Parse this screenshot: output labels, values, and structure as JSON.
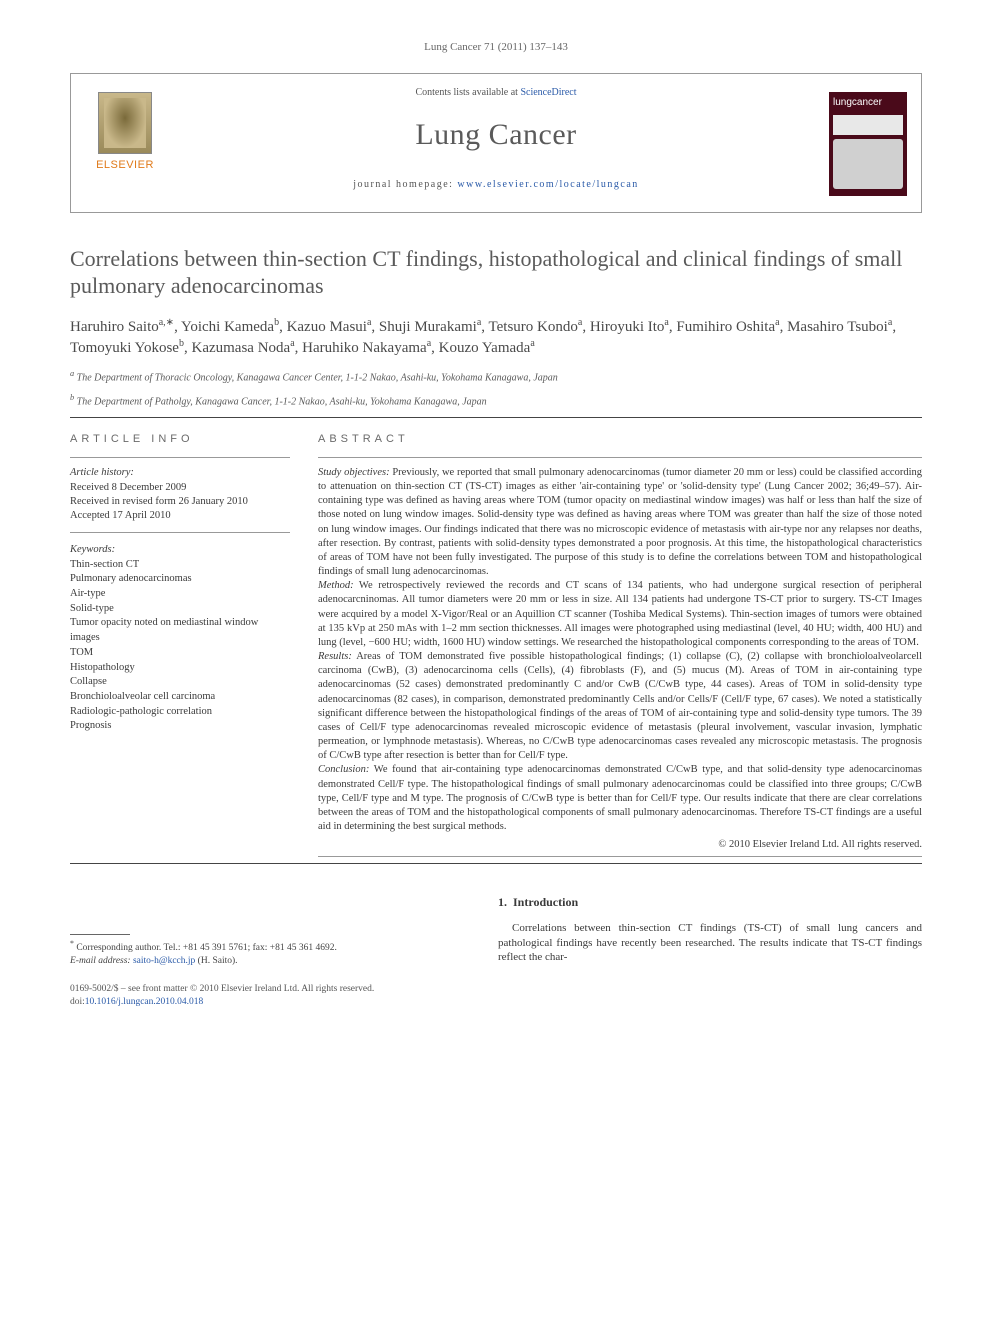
{
  "running_head": "Lung Cancer 71 (2011) 137–143",
  "masthead": {
    "contents_prefix": "Contents lists available at ",
    "contents_link": "ScienceDirect",
    "journal": "Lung Cancer",
    "homepage_prefix": "journal homepage: ",
    "homepage_url": "www.elsevier.com/locate/lungcan",
    "publisher": "ELSEVIER",
    "cover_label": "lungcancer"
  },
  "article": {
    "title": "Correlations between thin-section CT findings, histopathological and clinical findings of small pulmonary adenocarcinomas"
  },
  "authors": [
    {
      "name": "Haruhiro Saito",
      "aff": "a",
      "corr": true
    },
    {
      "name": "Yoichi Kameda",
      "aff": "b"
    },
    {
      "name": "Kazuo Masui",
      "aff": "a"
    },
    {
      "name": "Shuji Murakami",
      "aff": "a"
    },
    {
      "name": "Tetsuro Kondo",
      "aff": "a"
    },
    {
      "name": "Hiroyuki Ito",
      "aff": "a"
    },
    {
      "name": "Fumihiro Oshita",
      "aff": "a"
    },
    {
      "name": "Masahiro Tsuboi",
      "aff": "a"
    },
    {
      "name": "Tomoyuki Yokose",
      "aff": "b"
    },
    {
      "name": "Kazumasa Noda",
      "aff": "a"
    },
    {
      "name": "Haruhiko Nakayama",
      "aff": "a"
    },
    {
      "name": "Kouzo Yamada",
      "aff": "a"
    }
  ],
  "affiliations": {
    "a": "The Department of Thoracic Oncology, Kanagawa Cancer Center, 1-1-2 Nakao, Asahi-ku, Yokohama Kanagawa, Japan",
    "b": "The Department of Patholgy, Kanagawa Cancer, 1-1-2 Nakao, Asahi-ku, Yokohama Kanagawa, Japan"
  },
  "article_info": {
    "head": "ARTICLE INFO",
    "history_head": "Article history:",
    "history": [
      "Received 8 December 2009",
      "Received in revised form 26 January 2010",
      "Accepted 17 April 2010"
    ],
    "keywords_head": "Keywords:",
    "keywords": [
      "Thin-section CT",
      "Pulmonary adenocarcinomas",
      "Air-type",
      "Solid-type",
      "Tumor opacity noted on mediastinal window images",
      "TOM",
      "Histopathology",
      "Collapse",
      "Bronchioloalveolar cell carcinoma",
      "Radiologic-pathologic correlation",
      "Prognosis"
    ]
  },
  "abstract": {
    "head": "ABSTRACT",
    "parts": [
      {
        "label": "Study objectives:",
        "text": "Previously, we reported that small pulmonary adenocarcinomas (tumor diameter 20 mm or less) could be classified according to attenuation on thin-section CT (TS-CT) images as either 'air-containing type' or 'solid-density type' (Lung Cancer 2002; 36;49–57). Air-containing type was defined as having areas where TOM (tumor opacity on mediastinal window images) was half or less than half the size of those noted on lung window images. Solid-density type was defined as having areas where TOM was greater than half the size of those noted on lung window images. Our findings indicated that there was no microscopic evidence of metastasis with air-type nor any relapses nor deaths, after resection. By contrast, patients with solid-density types demonstrated a poor prognosis. At this time, the histopathological characteristics of areas of TOM have not been fully investigated. The purpose of this study is to define the correlations between TOM and histopathological findings of small lung adenocarcinomas."
      },
      {
        "label": "Method:",
        "text": "We retrospectively reviewed the records and CT scans of 134 patients, who had undergone surgical resection of peripheral adenocarcninomas. All tumor diameters were 20 mm or less in size. All 134 patients had undergone TS-CT prior to surgery. TS-CT Images were acquired by a model X-Vigor/Real or an Aquillion CT scanner (Toshiba Medical Systems). Thin-section images of tumors were obtained at 135 kVp at 250 mAs with 1–2 mm section thicknesses. All images were photographed using mediastinal (level, 40 HU; width, 400 HU) and lung (level, −600 HU; width, 1600 HU) window settings. We researched the histopathological components corresponding to the areas of TOM."
      },
      {
        "label": "Results:",
        "text": "Areas of TOM demonstrated five possible histopathological findings; (1) collapse (C), (2) collapse with bronchioloalveolarcell carcinoma (CwB), (3) adenocarcinoma cells (Cells), (4) fibroblasts (F), and (5) mucus (M). Areas of TOM in air-containing type adenocarcinomas (52 cases) demonstrated predominantly C and/or CwB (C/CwB type, 44 cases). Areas of TOM in solid-density type adenocarcinomas (82 cases), in comparison, demonstrated predominantly Cells and/or Cells/F (Cell/F type, 67 cases). We noted a statistically significant difference between the histopathological findings of the areas of TOM of air-containing type and solid-density type tumors. The 39 cases of Cell/F type adenocarcinomas revealed microscopic evidence of metastasis (pleural involvement, vascular invasion, lymphatic permeation, or lymphnode metastasis). Whereas, no C/CwB type adenocarcinomas cases revealed any microscopic metastasis. The prognosis of C/CwB type after resection is better than for Cell/F type."
      },
      {
        "label": "Conclusion:",
        "text": "We found that air-containing type adenocarcinomas demonstrated C/CwB type, and that solid-density type adenocarcinomas demonstrated Cell/F type. The histopathological findings of small pulmonary adenocarcinomas could be classified into three groups; C/CwB type, Cell/F type and M type. The prognosis of C/CwB type is better than for Cell/F type. Our results indicate that there are clear correlations between the areas of TOM and the histopathological components of small pulmonary adenocarcinomas. Therefore TS-CT findings are a useful aid in determining the best surgical methods."
      }
    ],
    "copyright": "© 2010 Elsevier Ireland Ltd. All rights reserved."
  },
  "body": {
    "section_number": "1.",
    "section_title": "Introduction",
    "para1": "Correlations between thin-section CT findings (TS-CT) of small lung cancers and pathological findings have recently been researched. The results indicate that TS-CT findings reflect the char-"
  },
  "footnote": {
    "corr_label": "Corresponding author. Tel.: +81 45 391 5761; fax: +81 45 361 4692.",
    "email_label": "E-mail address:",
    "email": "saito-h@kcch.jp",
    "email_who": "(H. Saito)."
  },
  "doi": {
    "front_matter": "0169-5002/$ – see front matter © 2010 Elsevier Ireland Ltd. All rights reserved.",
    "doi_label": "doi:",
    "doi_value": "10.1016/j.lungcan.2010.04.018"
  },
  "colors": {
    "link": "#2a5aa8",
    "text": "#3a3a3a",
    "rule": "#444444",
    "publisher": "#e07a1a",
    "cover_bg": "#4a0a1a"
  }
}
